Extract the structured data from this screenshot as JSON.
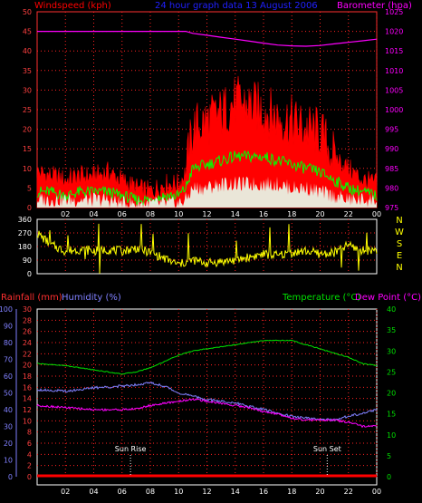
{
  "header": {
    "windspeed_label": "Windspeed (kph)",
    "title": "24 hour graph data  13 August 2006",
    "barometer_label": "Barometer (hpa)"
  },
  "lower_header": {
    "rainfall_label": "Rainfall (mm)",
    "humidity_label": "Humidity (%)",
    "temperature_label": "Temperature (°C)",
    "dewpoint_label": "Dew Point (°C)"
  },
  "annotations": {
    "sunrise": "Sun Rise",
    "sunset": "Sun Set"
  },
  "colors": {
    "wind_gust": "#ff0000",
    "wind_avg": "#e8fff0",
    "wind_mid": "#00ff00",
    "barometer": "#ff00ff",
    "direction": "#ffff00",
    "humidity": "#8080ff",
    "temperature": "#00e000",
    "dewpoint": "#ff00ff",
    "rainfall": "#ff0000",
    "grid": "#ff2020",
    "axis_left": "#ff4040",
    "title": "#2020ff"
  },
  "chart_data": [
    {
      "type": "area",
      "name": "wind-barometer",
      "x_ticks": [
        "02",
        "04",
        "06",
        "08",
        "10",
        "12",
        "14",
        "16",
        "18",
        "20",
        "22",
        "00"
      ],
      "y_left_ticks": [
        "0",
        "5",
        "10",
        "15",
        "20",
        "25",
        "30",
        "35",
        "40",
        "45",
        "50"
      ],
      "y_right_ticks": [
        "975",
        "980",
        "985",
        "990",
        "995",
        "1000",
        "1005",
        "1010",
        "1015",
        "1020",
        "1025"
      ],
      "ylim_left": [
        0,
        50
      ],
      "ylim_right": [
        975,
        1025
      ],
      "hours": [
        0,
        1,
        2,
        3,
        4,
        5,
        6,
        7,
        8,
        9,
        10,
        10.5,
        11,
        12,
        13,
        14,
        15,
        16,
        17,
        18,
        19,
        20,
        21,
        22,
        23,
        24
      ],
      "series": [
        {
          "name": "Windspeed (kph)",
          "axis": "left",
          "values": [
            9,
            8,
            7,
            8,
            8,
            9,
            7,
            5,
            4,
            6,
            6,
            9,
            20,
            22,
            24,
            27,
            26,
            25,
            23,
            22,
            20,
            19,
            13,
            10,
            7,
            6
          ]
        },
        {
          "name": "",
          "axis": "left",
          "values": [
            4,
            4,
            3,
            4,
            4,
            4,
            3,
            2,
            2,
            3,
            3,
            5,
            10,
            11,
            12,
            13,
            13,
            13,
            12,
            11,
            10,
            9,
            7,
            5,
            4,
            3
          ]
        },
        {
          "name": "",
          "axis": "left",
          "values": [
            2,
            2,
            2,
            2,
            2,
            2,
            1,
            1,
            1,
            1,
            1,
            2,
            5,
            5,
            6,
            6,
            6,
            6,
            6,
            5,
            5,
            4,
            3,
            2,
            2,
            2
          ]
        },
        {
          "name": "Barometer (hpa)",
          "axis": "right",
          "values": [
            1020,
            1020,
            1020,
            1020,
            1020,
            1020,
            1020,
            1020,
            1020,
            1020,
            1020,
            1020,
            1019.5,
            1019,
            1018.5,
            1018,
            1017.5,
            1017,
            1016.5,
            1016.3,
            1016.2,
            1016.4,
            1016.8,
            1017.2,
            1017.6,
            1018
          ]
        }
      ]
    },
    {
      "type": "scatter",
      "name": "wind-direction",
      "y_ticks": [
        "0",
        "90",
        "180",
        "270",
        "360"
      ],
      "y_compass": [
        "N",
        "W",
        "S",
        "E",
        "N"
      ],
      "ylim": [
        0,
        360
      ],
      "hours": [
        0,
        1,
        2,
        3,
        4,
        5,
        6,
        7,
        8,
        9,
        10,
        11,
        12,
        13,
        14,
        15,
        16,
        17,
        18,
        19,
        20,
        21,
        22,
        23,
        24
      ],
      "values": [
        270,
        190,
        150,
        160,
        150,
        160,
        150,
        170,
        140,
        100,
        60,
        90,
        70,
        80,
        90,
        110,
        130,
        120,
        140,
        150,
        130,
        140,
        190,
        150,
        160
      ]
    },
    {
      "type": "line",
      "name": "temperature-humidity",
      "y_left_ticks": [
        "0",
        "10",
        "20",
        "30",
        "40",
        "50",
        "60",
        "70",
        "80",
        "90",
        "100"
      ],
      "y_rain_ticks": [
        "0",
        "2",
        "4",
        "6",
        "8",
        "10",
        "12",
        "14",
        "16",
        "18",
        "20",
        "22",
        "24",
        "26",
        "28",
        "30"
      ],
      "y_right_ticks": [
        "0",
        "5",
        "10",
        "15",
        "20",
        "25",
        "30",
        "35",
        "40"
      ],
      "ylim_left": [
        0,
        100
      ],
      "ylim_right": [
        0,
        40
      ],
      "hours": [
        0,
        2,
        4,
        6,
        7,
        8,
        9,
        10,
        11,
        12,
        13,
        14,
        15,
        16,
        17,
        18,
        19,
        20,
        21,
        22,
        23,
        24
      ],
      "series": [
        {
          "name": "Humidity (%)",
          "axis": "left",
          "values": [
            52,
            51,
            53,
            54,
            55,
            56,
            54,
            50,
            48,
            46,
            45,
            44,
            42,
            40,
            38,
            36,
            35,
            34,
            34,
            36,
            38,
            40
          ]
        },
        {
          "name": "Temperature (°C)",
          "axis": "right",
          "values": [
            27,
            26.5,
            25.5,
            24.5,
            25,
            26,
            27.5,
            29,
            30,
            30.5,
            31,
            31.5,
            32,
            32.5,
            32.5,
            32.5,
            31.5,
            30.5,
            29.5,
            28.5,
            27,
            26.5
          ]
        },
        {
          "name": "Dew Point (°C)",
          "axis": "right",
          "values": [
            17,
            16.5,
            16,
            16,
            16.2,
            17,
            17.5,
            18,
            18.5,
            18,
            17.5,
            17,
            16.5,
            15.5,
            15,
            14,
            13.5,
            13.5,
            13.5,
            13,
            12,
            12
          ]
        },
        {
          "name": "Rainfall (mm)",
          "axis": "rain",
          "values": [
            0,
            0,
            0,
            0,
            0,
            0,
            0,
            0,
            0,
            0,
            0,
            0,
            0,
            0,
            0,
            0,
            0,
            0,
            0,
            0,
            0,
            0
          ]
        }
      ],
      "sunrise_hour": 6.6,
      "sunset_hour": 20.5
    }
  ]
}
